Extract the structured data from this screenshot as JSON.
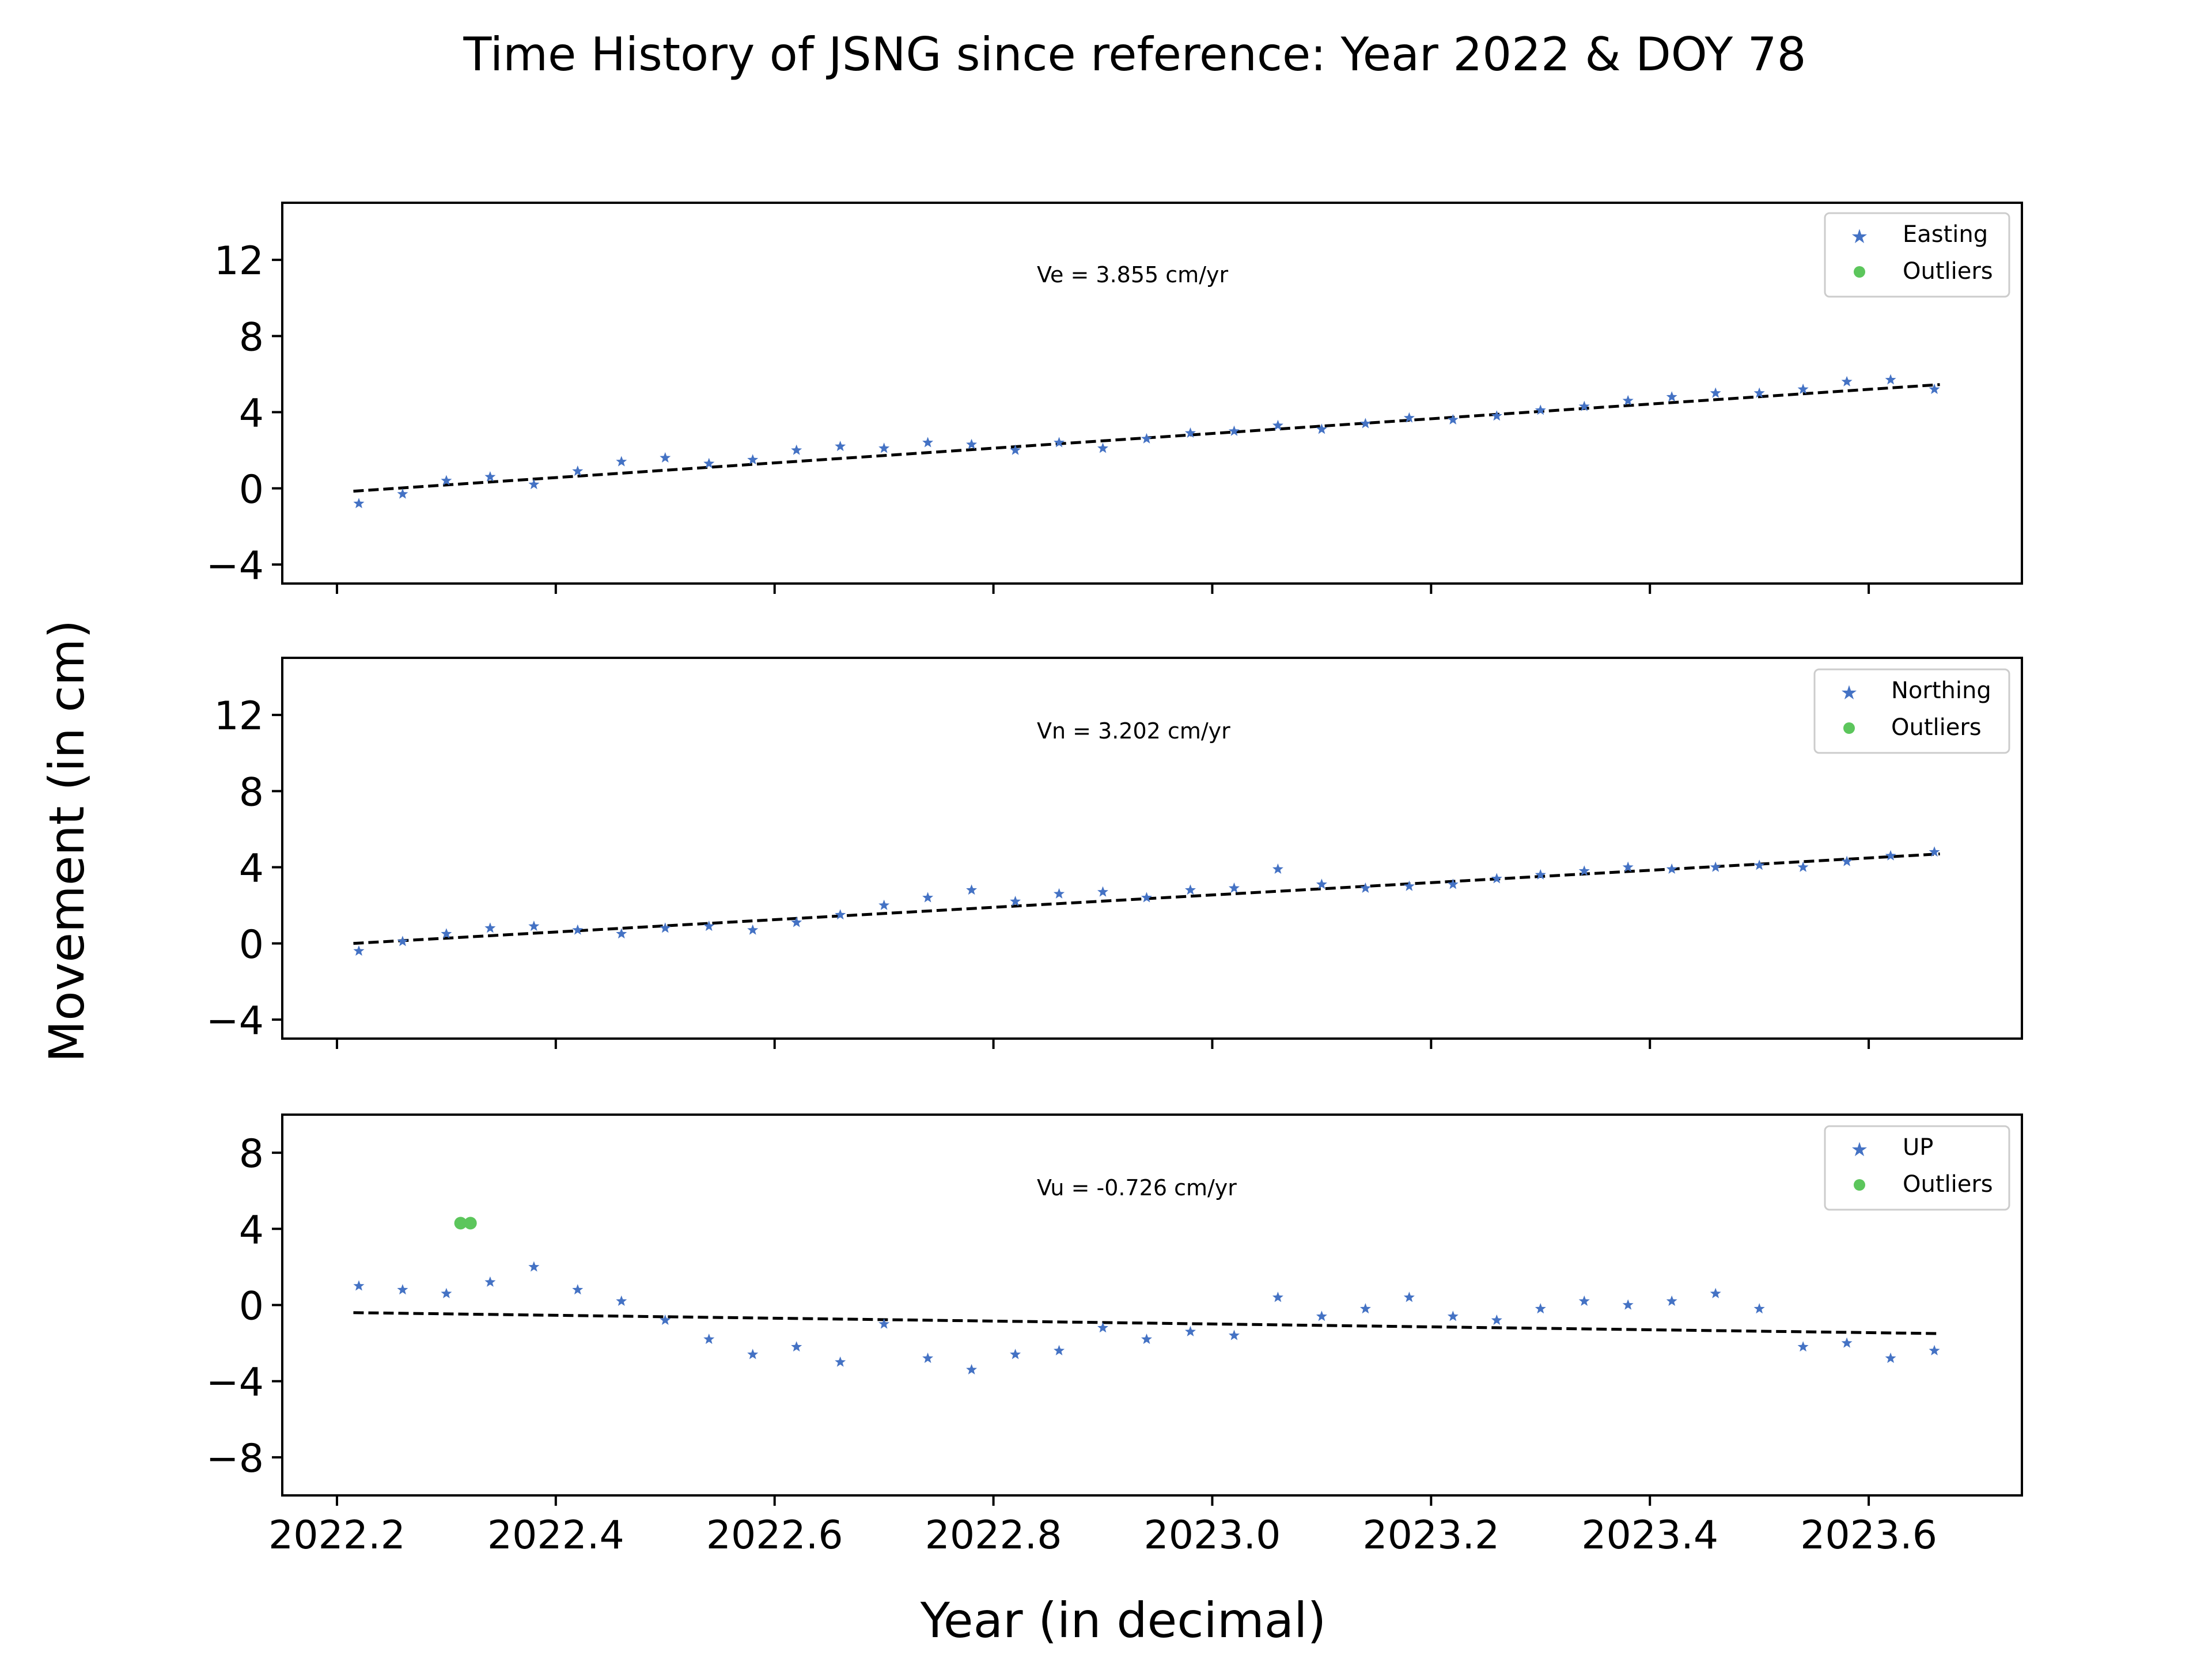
{
  "figure": {
    "title": "Time History of JSNG since reference: Year 2022 & DOY 78",
    "xlabel": "Year (in decimal)",
    "ylabel": "Movement (in cm)"
  },
  "colors": {
    "series": "#4472c4",
    "outliers": "#5cc65c",
    "trend": "#000000"
  },
  "chart_data": [
    {
      "type": "scatter",
      "component": "Easting",
      "velocity_label": "Ve =  3.855 cm/yr",
      "xlim": [
        2022.15,
        2023.74
      ],
      "ylim": [
        -5,
        15
      ],
      "yticks": [
        -4,
        0,
        4,
        8,
        12
      ],
      "xticks": [
        2022.2,
        2022.4,
        2022.6,
        2022.8,
        2023.0,
        2023.2,
        2023.4,
        2023.6
      ],
      "legend": [
        "Easting",
        "Outliers"
      ],
      "legend_position": "top-right",
      "trend": {
        "x": [
          2022.215,
          2023.665
        ],
        "y": [
          -0.15,
          5.45
        ]
      },
      "series": [
        {
          "name": "Easting",
          "marker": "star",
          "x": [
            2022.22,
            2022.26,
            2022.3,
            2022.34,
            2022.38,
            2022.42,
            2022.46,
            2022.5,
            2022.54,
            2022.58,
            2022.62,
            2022.66,
            2022.7,
            2022.74,
            2022.78,
            2022.82,
            2022.86,
            2022.9,
            2022.94,
            2022.98,
            2023.02,
            2023.06,
            2023.1,
            2023.14,
            2023.18,
            2023.22,
            2023.26,
            2023.3,
            2023.34,
            2023.38,
            2023.42,
            2023.46,
            2023.5,
            2023.54,
            2023.58,
            2023.62,
            2023.66
          ],
          "y": [
            -0.8,
            -0.3,
            0.4,
            0.6,
            0.2,
            0.9,
            1.4,
            1.6,
            1.3,
            1.5,
            2.0,
            2.2,
            2.1,
            2.4,
            2.3,
            2.0,
            2.4,
            2.1,
            2.6,
            2.9,
            3.0,
            3.3,
            3.1,
            3.4,
            3.7,
            3.6,
            3.8,
            4.1,
            4.3,
            4.6,
            4.8,
            5.0,
            5.0,
            5.2,
            5.6,
            5.7,
            5.2
          ]
        }
      ],
      "outliers": {
        "name": "Outliers",
        "x": [],
        "y": []
      }
    },
    {
      "type": "scatter",
      "component": "Northing",
      "velocity_label": "Vn =  3.202 cm/yr",
      "xlim": [
        2022.15,
        2023.74
      ],
      "ylim": [
        -5,
        15
      ],
      "yticks": [
        -4,
        0,
        4,
        8,
        12
      ],
      "xticks": [
        2022.2,
        2022.4,
        2022.6,
        2022.8,
        2023.0,
        2023.2,
        2023.4,
        2023.6
      ],
      "legend": [
        "Northing",
        "Outliers"
      ],
      "legend_position": "top-right",
      "trend": {
        "x": [
          2022.215,
          2023.665
        ],
        "y": [
          0.0,
          4.7
        ]
      },
      "series": [
        {
          "name": "Northing",
          "marker": "star",
          "x": [
            2022.22,
            2022.26,
            2022.3,
            2022.34,
            2022.38,
            2022.42,
            2022.46,
            2022.5,
            2022.54,
            2022.58,
            2022.62,
            2022.66,
            2022.7,
            2022.74,
            2022.78,
            2022.82,
            2022.86,
            2022.9,
            2022.94,
            2022.98,
            2023.02,
            2023.06,
            2023.1,
            2023.14,
            2023.18,
            2023.22,
            2023.26,
            2023.3,
            2023.34,
            2023.38,
            2023.42,
            2023.46,
            2023.5,
            2023.54,
            2023.58,
            2023.62,
            2023.66
          ],
          "y": [
            -0.4,
            0.1,
            0.5,
            0.8,
            0.9,
            0.7,
            0.5,
            0.8,
            0.9,
            0.7,
            1.1,
            1.5,
            2.0,
            2.4,
            2.8,
            2.2,
            2.6,
            2.7,
            2.4,
            2.8,
            2.9,
            3.9,
            3.1,
            2.9,
            3.0,
            3.1,
            3.4,
            3.6,
            3.8,
            4.0,
            3.9,
            4.0,
            4.1,
            4.0,
            4.3,
            4.6,
            4.8
          ]
        }
      ],
      "outliers": {
        "name": "Outliers",
        "x": [],
        "y": []
      }
    },
    {
      "type": "scatter",
      "component": "UP",
      "velocity_label": "Vu = -0.726 cm/yr",
      "xlim": [
        2022.15,
        2023.74
      ],
      "ylim": [
        -10,
        10
      ],
      "yticks": [
        -8,
        -4,
        0,
        4,
        8
      ],
      "xticks": [
        2022.2,
        2022.4,
        2022.6,
        2022.8,
        2023.0,
        2023.2,
        2023.4,
        2023.6
      ],
      "xticklabels": [
        "2022.2",
        "2022.4",
        "2022.6",
        "2022.8",
        "2023.0",
        "2023.2",
        "2023.4",
        "2023.6"
      ],
      "legend": [
        "UP",
        "Outliers"
      ],
      "legend_position": "top-right",
      "trend": {
        "x": [
          2022.215,
          2023.665
        ],
        "y": [
          -0.4,
          -1.5
        ]
      },
      "series": [
        {
          "name": "UP",
          "marker": "star",
          "x": [
            2022.22,
            2022.26,
            2022.3,
            2022.34,
            2022.38,
            2022.42,
            2022.46,
            2022.5,
            2022.54,
            2022.58,
            2022.62,
            2022.66,
            2022.7,
            2022.74,
            2022.78,
            2022.82,
            2022.86,
            2022.9,
            2022.94,
            2022.98,
            2023.02,
            2023.06,
            2023.1,
            2023.14,
            2023.18,
            2023.22,
            2023.26,
            2023.3,
            2023.34,
            2023.38,
            2023.42,
            2023.46,
            2023.5,
            2023.54,
            2023.58,
            2023.62,
            2023.66
          ],
          "y": [
            1.0,
            0.8,
            0.6,
            1.2,
            2.0,
            0.8,
            0.2,
            -0.8,
            -1.8,
            -2.6,
            -2.2,
            -3.0,
            -1.0,
            -2.8,
            -3.4,
            -2.6,
            -2.4,
            -1.2,
            -1.8,
            -1.4,
            -1.6,
            0.4,
            -0.6,
            -0.2,
            0.4,
            -0.6,
            -0.8,
            -0.2,
            0.2,
            0.0,
            0.2,
            0.6,
            -0.2,
            -2.2,
            -2.0,
            -2.8,
            -2.4
          ]
        }
      ],
      "outliers": {
        "name": "Outliers",
        "x": [
          2022.313,
          2022.322
        ],
        "y": [
          4.3,
          4.3
        ]
      }
    }
  ]
}
